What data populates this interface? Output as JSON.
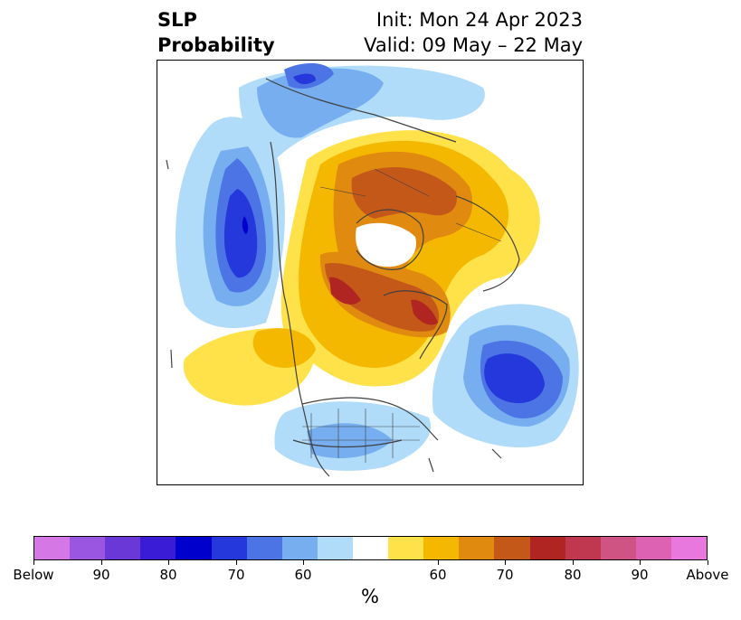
{
  "title": {
    "left_line1": "SLP",
    "left_line2": "Probability",
    "right_line1": "Init: Mon 24 Apr 2023",
    "right_line2": "Valid: 09 May – 22 May"
  },
  "colorbar": {
    "unit": "%",
    "colors": [
      "#d677e6",
      "#9a56e0",
      "#6b38d8",
      "#3a1bd6",
      "#0000cc",
      "#2438dc",
      "#4c74e4",
      "#76aef0",
      "#b0dcfa",
      "#ffffff",
      "#ffe24a",
      "#f5b800",
      "#e08a10",
      "#c45818",
      "#b02422",
      "#c03850",
      "#cf5484",
      "#dd62b4",
      "#e878de"
    ],
    "labels": [
      "Below",
      "90",
      "80",
      "70",
      "60",
      "60",
      "70",
      "80",
      "90",
      "Above"
    ]
  },
  "legend_meaning": {
    "blue": "Below",
    "orange": "Above"
  }
}
